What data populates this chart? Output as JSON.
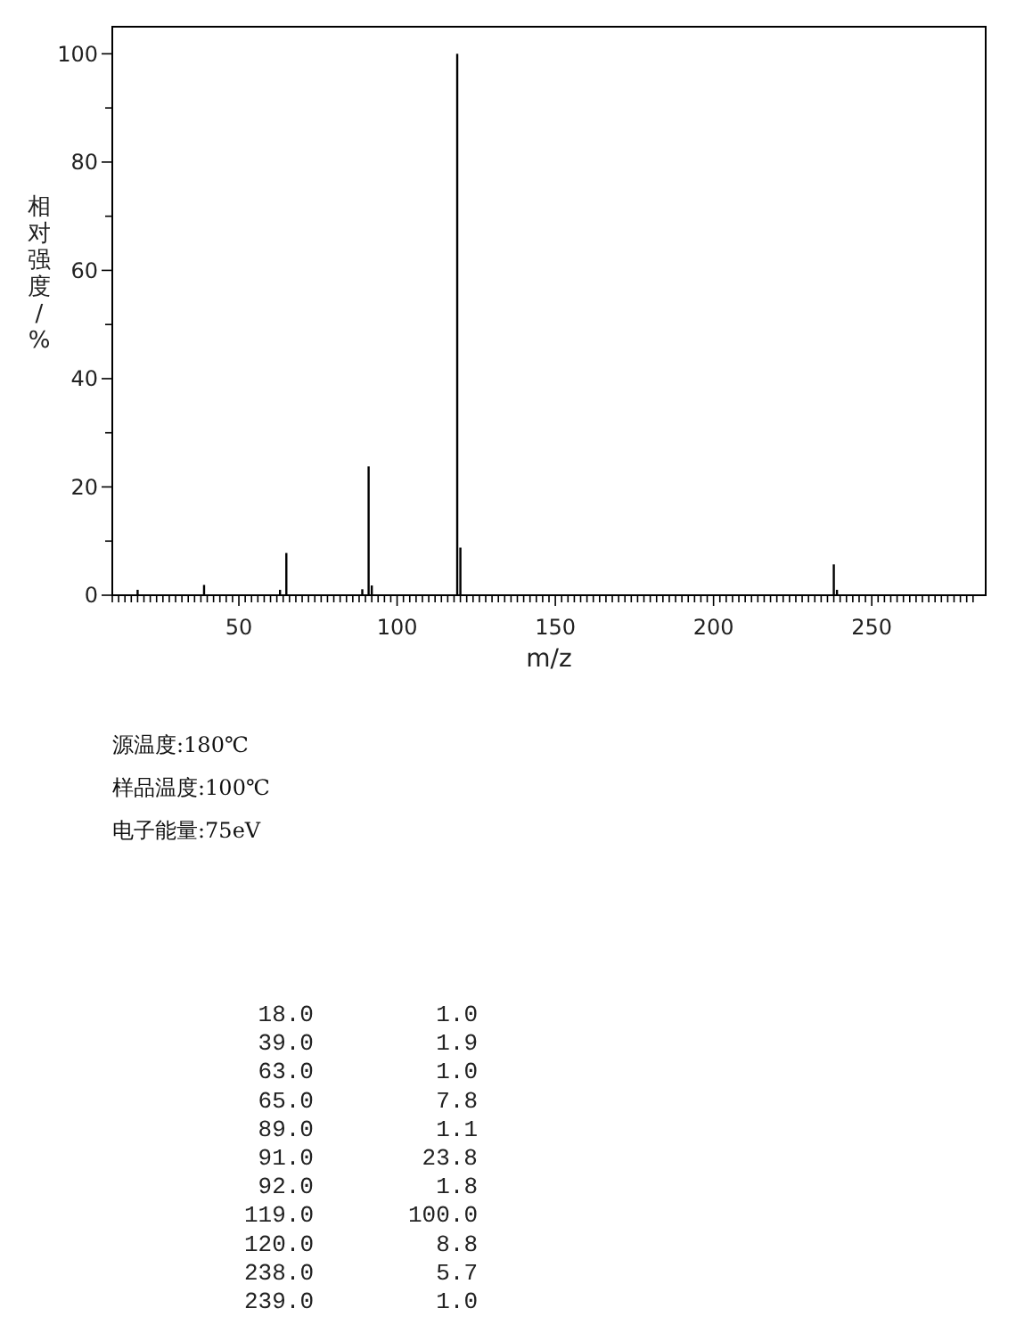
{
  "chart_data": {
    "type": "bar",
    "xlabel": "m/z",
    "ylabel": "相对强度/%",
    "x": [
      18,
      39,
      63,
      65,
      89,
      91,
      92,
      119,
      120,
      238,
      239
    ],
    "values": [
      1.0,
      1.9,
      1.0,
      7.8,
      1.1,
      23.8,
      1.8,
      100.0,
      8.8,
      5.7,
      1.0
    ],
    "color": "#000000",
    "xlim": [
      10,
      286
    ],
    "xticks": [
      {
        "value": 10,
        "label": null
      },
      {
        "value": 12,
        "label": null
      },
      {
        "value": 14,
        "label": null
      },
      {
        "value": 16,
        "label": null
      },
      {
        "value": 18,
        "label": null
      },
      {
        "value": 20,
        "label": null
      },
      {
        "value": 22,
        "label": null
      },
      {
        "value": 24,
        "label": null
      },
      {
        "value": 26,
        "label": null
      },
      {
        "value": 28,
        "label": null
      },
      {
        "value": 30,
        "label": null
      },
      {
        "value": 32,
        "label": null
      },
      {
        "value": 34,
        "label": null
      },
      {
        "value": 36,
        "label": null
      },
      {
        "value": 38,
        "label": null
      },
      {
        "value": 40,
        "label": null
      },
      {
        "value": 42,
        "label": null
      },
      {
        "value": 44,
        "label": null
      },
      {
        "value": 46,
        "label": null
      },
      {
        "value": 48,
        "label": null
      },
      50,
      {
        "value": 52,
        "label": null
      },
      {
        "value": 54,
        "label": null
      },
      {
        "value": 56,
        "label": null
      },
      {
        "value": 58,
        "label": null
      },
      {
        "value": 60,
        "label": null
      },
      {
        "value": 62,
        "label": null
      },
      {
        "value": 64,
        "label": null
      },
      {
        "value": 66,
        "label": null
      },
      {
        "value": 68,
        "label": null
      },
      {
        "value": 70,
        "label": null
      },
      {
        "value": 72,
        "label": null
      },
      {
        "value": 74,
        "label": null
      },
      {
        "value": 76,
        "label": null
      },
      {
        "value": 78,
        "label": null
      },
      {
        "value": 80,
        "label": null
      },
      {
        "value": 82,
        "label": null
      },
      {
        "value": 84,
        "label": null
      },
      {
        "value": 86,
        "label": null
      },
      {
        "value": 88,
        "label": null
      },
      {
        "value": 90,
        "label": null
      },
      {
        "value": 92,
        "label": null
      },
      {
        "value": 94,
        "label": null
      },
      {
        "value": 96,
        "label": null
      },
      {
        "value": 98,
        "label": null
      },
      100,
      {
        "value": 102,
        "label": null
      },
      {
        "value": 104,
        "label": null
      },
      {
        "value": 106,
        "label": null
      },
      {
        "value": 108,
        "label": null
      },
      {
        "value": 110,
        "label": null
      },
      {
        "value": 112,
        "label": null
      },
      {
        "value": 114,
        "label": null
      },
      {
        "value": 116,
        "label": null
      },
      {
        "value": 118,
        "label": null
      },
      {
        "value": 120,
        "label": null
      },
      {
        "value": 122,
        "label": null
      },
      {
        "value": 124,
        "label": null
      },
      {
        "value": 126,
        "label": null
      },
      {
        "value": 128,
        "label": null
      },
      {
        "value": 130,
        "label": null
      },
      {
        "value": 132,
        "label": null
      },
      {
        "value": 134,
        "label": null
      },
      {
        "value": 136,
        "label": null
      },
      {
        "value": 138,
        "label": null
      },
      {
        "value": 140,
        "label": null
      },
      {
        "value": 142,
        "label": null
      },
      {
        "value": 144,
        "label": null
      },
      {
        "value": 146,
        "label": null
      },
      {
        "value": 148,
        "label": null
      },
      150,
      {
        "value": 152,
        "label": null
      },
      {
        "value": 154,
        "label": null
      },
      {
        "value": 156,
        "label": null
      },
      {
        "value": 158,
        "label": null
      },
      {
        "value": 160,
        "label": null
      },
      {
        "value": 162,
        "label": null
      },
      {
        "value": 164,
        "label": null
      },
      {
        "value": 166,
        "label": null
      },
      {
        "value": 168,
        "label": null
      },
      {
        "value": 170,
        "label": null
      },
      {
        "value": 172,
        "label": null
      },
      {
        "value": 174,
        "label": null
      },
      {
        "value": 176,
        "label": null
      },
      {
        "value": 178,
        "label": null
      },
      {
        "value": 180,
        "label": null
      },
      {
        "value": 182,
        "label": null
      },
      {
        "value": 184,
        "label": null
      },
      {
        "value": 186,
        "label": null
      },
      {
        "value": 188,
        "label": null
      },
      {
        "value": 190,
        "label": null
      },
      {
        "value": 192,
        "label": null
      },
      {
        "value": 194,
        "label": null
      },
      {
        "value": 196,
        "label": null
      },
      {
        "value": 198,
        "label": null
      },
      200,
      {
        "value": 202,
        "label": null
      },
      {
        "value": 204,
        "label": null
      },
      {
        "value": 206,
        "label": null
      },
      {
        "value": 208,
        "label": null
      },
      {
        "value": 210,
        "label": null
      },
      {
        "value": 212,
        "label": null
      },
      {
        "value": 214,
        "label": null
      },
      {
        "value": 216,
        "label": null
      },
      {
        "value": 218,
        "label": null
      },
      {
        "value": 220,
        "label": null
      },
      {
        "value": 222,
        "label": null
      },
      {
        "value": 224,
        "label": null
      },
      {
        "value": 226,
        "label": null
      },
      {
        "value": 228,
        "label": null
      },
      {
        "value": 230,
        "label": null
      },
      {
        "value": 232,
        "label": null
      },
      {
        "value": 234,
        "label": null
      },
      {
        "value": 236,
        "label": null
      },
      {
        "value": 238,
        "label": null
      },
      {
        "value": 240,
        "label": null
      },
      {
        "value": 242,
        "label": null
      },
      {
        "value": 244,
        "label": null
      },
      {
        "value": 246,
        "label": null
      },
      {
        "value": 248,
        "label": null
      },
      250,
      {
        "value": 252,
        "label": null
      },
      {
        "value": 254,
        "label": null
      },
      {
        "value": 256,
        "label": null
      },
      {
        "value": 258,
        "label": null
      },
      {
        "value": 260,
        "label": null
      },
      {
        "value": 262,
        "label": null
      },
      {
        "value": 264,
        "label": null
      },
      {
        "value": 266,
        "label": null
      },
      {
        "value": 268,
        "label": null
      },
      {
        "value": 270,
        "label": null
      },
      {
        "value": 272,
        "label": null
      },
      {
        "value": 274,
        "label": null
      },
      {
        "value": 276,
        "label": null
      },
      {
        "value": 278,
        "label": null
      },
      {
        "value": 280,
        "label": null
      },
      {
        "value": 282,
        "label": null
      }
    ],
    "ylim": [
      0,
      105
    ],
    "yticks": [
      0,
      {
        "value": 10,
        "label": null
      },
      20,
      {
        "value": 30,
        "label": null
      },
      40,
      {
        "value": 50,
        "label": null
      },
      60,
      {
        "value": 70,
        "label": null
      },
      80,
      {
        "value": 90,
        "label": null
      },
      100
    ],
    "annotations": [
      "源温度:180℃",
      "样品温度:100℃",
      "电子能量:75eV",
      "18.0",
      "1.0",
      "39.0",
      "1.9",
      "63.0",
      "1.0",
      "65.0",
      "7.8",
      "89.0",
      "1.1",
      "91.0",
      "23.8",
      "92.0",
      "1.8",
      "119.0",
      "100.0",
      "120.0",
      "8.8",
      "238.0",
      "5.7",
      "239.0",
      "1.0"
    ]
  }
}
